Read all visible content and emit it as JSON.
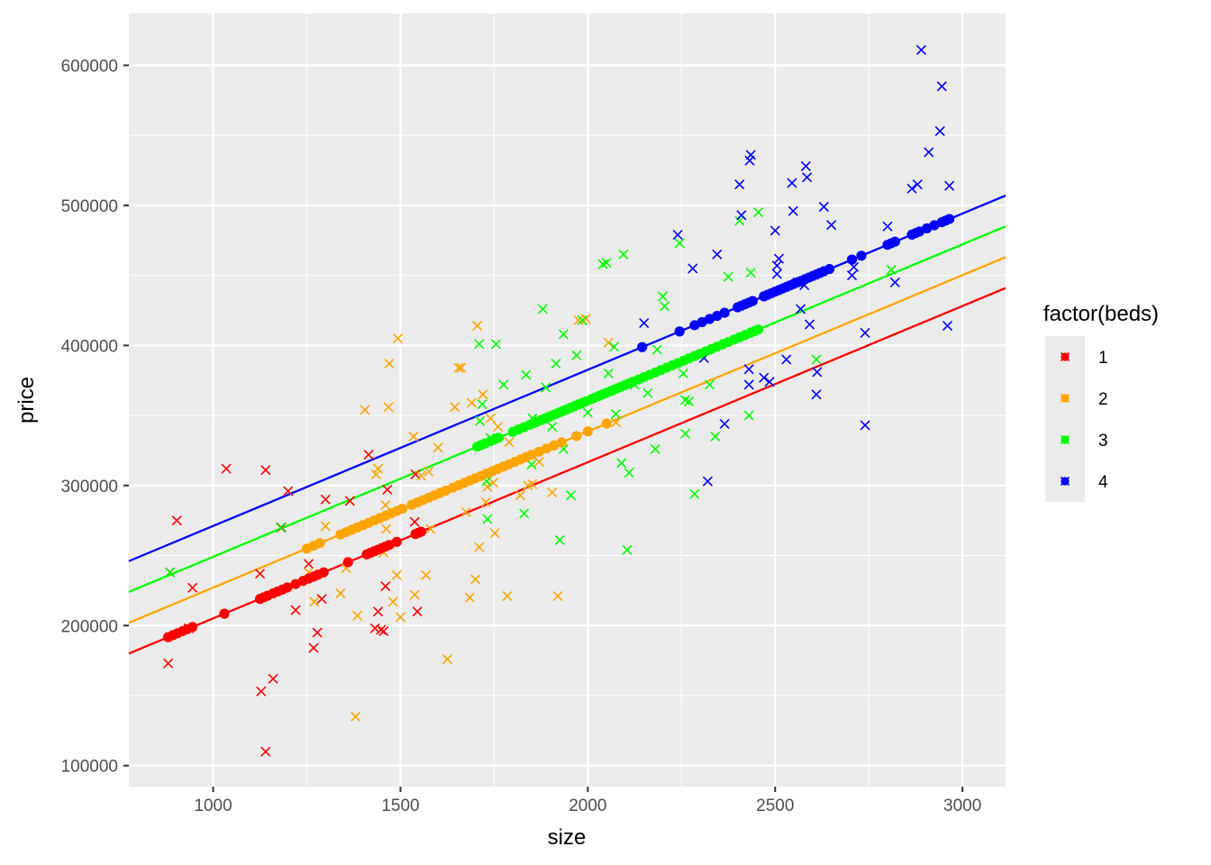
{
  "chart_data": {
    "type": "scatter",
    "xlabel": "size",
    "ylabel": "price",
    "xlim": [
      775,
      3115
    ],
    "ylim": [
      85000,
      637000
    ],
    "xticks": [
      1000,
      1500,
      2000,
      2500,
      3000
    ],
    "yticks": [
      100000,
      200000,
      300000,
      400000,
      500000,
      600000
    ],
    "xtick_labels": [
      "1000",
      "1500",
      "2000",
      "2500",
      "3000"
    ],
    "ytick_labels": [
      "100000",
      "200000",
      "300000",
      "400000",
      "500000",
      "600000"
    ],
    "grid": true,
    "legend": {
      "title": "factor(beds)",
      "position": "right",
      "labels": [
        "1",
        "2",
        "3",
        "4"
      ]
    },
    "series": [
      {
        "name": "1",
        "color": "#ff0000",
        "line": {
          "x": [
            775,
            3115
          ],
          "y": [
            180000,
            441000
          ]
        },
        "fitted_x": [
          880,
          893,
          905,
          918,
          930,
          945,
          1030,
          1125,
          1135,
          1145,
          1160,
          1172,
          1185,
          1198,
          1220,
          1240,
          1255,
          1268,
          1280,
          1295,
          1360,
          1410,
          1420,
          1430,
          1440,
          1450,
          1460,
          1470,
          1490,
          1540,
          1548,
          1555
        ],
        "observed": [
          [
            880,
            173000
          ],
          [
            885,
            238000
          ],
          [
            903,
            275000
          ],
          [
            945,
            227000
          ],
          [
            935,
            198000
          ],
          [
            1035,
            312000
          ],
          [
            1125,
            237000
          ],
          [
            1140,
            311000
          ],
          [
            1128,
            153000
          ],
          [
            1140,
            110000
          ],
          [
            1160,
            162000
          ],
          [
            1182,
            270000
          ],
          [
            1200,
            296000
          ],
          [
            1220,
            211000
          ],
          [
            1255,
            244000
          ],
          [
            1268,
            184000
          ],
          [
            1278,
            195000
          ],
          [
            1290,
            219000
          ],
          [
            1300,
            290000
          ],
          [
            1365,
            289000
          ],
          [
            1415,
            322000
          ],
          [
            1432,
            198000
          ],
          [
            1440,
            210000
          ],
          [
            1448,
            197000
          ],
          [
            1455,
            196000
          ],
          [
            1460,
            228000
          ],
          [
            1465,
            297000
          ],
          [
            1538,
            274000
          ],
          [
            1540,
            308000
          ],
          [
            1545,
            210000
          ]
        ]
      },
      {
        "name": "2",
        "color": "#ffa500",
        "line": {
          "x": [
            775,
            3115
          ],
          "y": [
            202000,
            463000
          ]
        },
        "fitted_x": [
          1250,
          1268,
          1285,
          1340,
          1355,
          1370,
          1385,
          1400,
          1415,
          1430,
          1445,
          1460,
          1475,
          1490,
          1505,
          1530,
          1545,
          1560,
          1575,
          1590,
          1605,
          1620,
          1640,
          1655,
          1670,
          1685,
          1700,
          1715,
          1730,
          1745,
          1760,
          1775,
          1790,
          1805,
          1820,
          1835,
          1850,
          1870,
          1890,
          1910,
          1930,
          1970,
          2000,
          2050
        ],
        "observed": [
          [
            1255,
            238000
          ],
          [
            1270,
            217000
          ],
          [
            1300,
            271000
          ],
          [
            1340,
            223000
          ],
          [
            1355,
            241000
          ],
          [
            1380,
            135000
          ],
          [
            1385,
            207000
          ],
          [
            1405,
            354000
          ],
          [
            1435,
            308000
          ],
          [
            1440,
            312000
          ],
          [
            1455,
            252000
          ],
          [
            1460,
            286000
          ],
          [
            1462,
            269000
          ],
          [
            1468,
            356000
          ],
          [
            1470,
            387000
          ],
          [
            1480,
            217000
          ],
          [
            1490,
            236000
          ],
          [
            1493,
            405000
          ],
          [
            1500,
            206000
          ],
          [
            1535,
            335000
          ],
          [
            1538,
            222000
          ],
          [
            1555,
            307000
          ],
          [
            1568,
            236000
          ],
          [
            1575,
            310000
          ],
          [
            1580,
            269000
          ],
          [
            1600,
            327000
          ],
          [
            1625,
            176000
          ],
          [
            1645,
            356000
          ],
          [
            1655,
            384000
          ],
          [
            1662,
            384000
          ],
          [
            1675,
            281000
          ],
          [
            1685,
            220000
          ],
          [
            1690,
            359000
          ],
          [
            1700,
            233000
          ],
          [
            1705,
            414000
          ],
          [
            1710,
            256000
          ],
          [
            1720,
            365000
          ],
          [
            1728,
            288000
          ],
          [
            1732,
            299000
          ],
          [
            1740,
            348000
          ],
          [
            1748,
            302000
          ],
          [
            1752,
            266000
          ],
          [
            1760,
            342000
          ],
          [
            1785,
            221000
          ],
          [
            1790,
            331000
          ],
          [
            1820,
            293000
          ],
          [
            1840,
            300000
          ],
          [
            1852,
            301000
          ],
          [
            1870,
            317000
          ],
          [
            1905,
            295000
          ],
          [
            1920,
            221000
          ],
          [
            1975,
            418000
          ],
          [
            1995,
            419000
          ],
          [
            2055,
            402000
          ],
          [
            2075,
            345000
          ]
        ]
      },
      {
        "name": "3",
        "color": "#00ff00",
        "line": {
          "x": [
            775,
            3115
          ],
          "y": [
            224000,
            485000
          ]
        },
        "fitted_x": [
          1705,
          1715,
          1725,
          1740,
          1752,
          1762,
          1800,
          1815,
          1830,
          1845,
          1855,
          1865,
          1875,
          1885,
          1895,
          1905,
          1915,
          1925,
          1935,
          1945,
          1955,
          1965,
          1975,
          1985,
          1995,
          2010,
          2020,
          2030,
          2040,
          2050,
          2060,
          2070,
          2080,
          2090,
          2100,
          2110,
          2120,
          2135,
          2150,
          2165,
          2180,
          2195,
          2210,
          2225,
          2240,
          2255,
          2270,
          2285,
          2300,
          2315,
          2330,
          2345,
          2360,
          2375,
          2390,
          2405,
          2420,
          2435,
          2445,
          2455
        ],
        "observed": [
          [
            885,
            238000
          ],
          [
            1180,
            270000
          ],
          [
            1710,
            401000
          ],
          [
            1712,
            346000
          ],
          [
            1718,
            358000
          ],
          [
            1730,
            303000
          ],
          [
            1732,
            276000
          ],
          [
            1740,
            334000
          ],
          [
            1755,
            401000
          ],
          [
            1775,
            372000
          ],
          [
            1830,
            280000
          ],
          [
            1835,
            379000
          ],
          [
            1850,
            315000
          ],
          [
            1852,
            348000
          ],
          [
            1880,
            426000
          ],
          [
            1888,
            370000
          ],
          [
            1905,
            342000
          ],
          [
            1915,
            387000
          ],
          [
            1925,
            261000
          ],
          [
            1935,
            326000
          ],
          [
            1935,
            408000
          ],
          [
            1955,
            293000
          ],
          [
            1970,
            393000
          ],
          [
            1985,
            418000
          ],
          [
            2000,
            352000
          ],
          [
            2040,
            458000
          ],
          [
            2050,
            459000
          ],
          [
            2055,
            380000
          ],
          [
            2070,
            399000
          ],
          [
            2075,
            351000
          ],
          [
            2090,
            316000
          ],
          [
            2095,
            465000
          ],
          [
            2105,
            254000
          ],
          [
            2110,
            309000
          ],
          [
            2125,
            372000
          ],
          [
            2160,
            366000
          ],
          [
            2180,
            326000
          ],
          [
            2185,
            397000
          ],
          [
            2200,
            435000
          ],
          [
            2205,
            428000
          ],
          [
            2245,
            473000
          ],
          [
            2255,
            380000
          ],
          [
            2260,
            337000
          ],
          [
            2260,
            361000
          ],
          [
            2270,
            360000
          ],
          [
            2285,
            294000
          ],
          [
            2325,
            372000
          ],
          [
            2340,
            335000
          ],
          [
            2375,
            449000
          ],
          [
            2405,
            489000
          ],
          [
            2430,
            350000
          ],
          [
            2435,
            452000
          ],
          [
            2455,
            495000
          ],
          [
            2610,
            390000
          ],
          [
            2810,
            454000
          ]
        ]
      },
      {
        "name": "4",
        "color": "#0000ff",
        "line": {
          "x": [
            775,
            3115
          ],
          "y": [
            246000,
            507000
          ]
        },
        "fitted_x": [
          2145,
          2245,
          2285,
          2305,
          2325,
          2345,
          2365,
          2400,
          2410,
          2420,
          2430,
          2440,
          2470,
          2480,
          2490,
          2500,
          2510,
          2520,
          2530,
          2540,
          2550,
          2560,
          2570,
          2580,
          2590,
          2600,
          2610,
          2620,
          2630,
          2645,
          2705,
          2730,
          2800,
          2810,
          2820,
          2865,
          2875,
          2885,
          2905,
          2925,
          2945,
          2955,
          2965
        ],
        "observed": [
          [
            2150,
            416000
          ],
          [
            2240,
            479000
          ],
          [
            2280,
            455000
          ],
          [
            2310,
            391000
          ],
          [
            2320,
            303000
          ],
          [
            2345,
            465000
          ],
          [
            2365,
            344000
          ],
          [
            2405,
            515000
          ],
          [
            2410,
            493000
          ],
          [
            2430,
            383000
          ],
          [
            2430,
            372000
          ],
          [
            2432,
            532000
          ],
          [
            2435,
            536000
          ],
          [
            2470,
            377000
          ],
          [
            2485,
            374000
          ],
          [
            2500,
            482000
          ],
          [
            2505,
            457000
          ],
          [
            2505,
            451000
          ],
          [
            2510,
            462000
          ],
          [
            2530,
            390000
          ],
          [
            2545,
            516000
          ],
          [
            2548,
            496000
          ],
          [
            2560,
            445000
          ],
          [
            2568,
            426000
          ],
          [
            2578,
            443000
          ],
          [
            2582,
            528000
          ],
          [
            2585,
            520000
          ],
          [
            2592,
            415000
          ],
          [
            2610,
            365000
          ],
          [
            2612,
            381000
          ],
          [
            2630,
            499000
          ],
          [
            2650,
            486000
          ],
          [
            2705,
            450000
          ],
          [
            2710,
            456000
          ],
          [
            2740,
            343000
          ],
          [
            2740,
            409000
          ],
          [
            2800,
            485000
          ],
          [
            2820,
            445000
          ],
          [
            2865,
            512000
          ],
          [
            2880,
            515000
          ],
          [
            2890,
            611000
          ],
          [
            2910,
            538000
          ],
          [
            2940,
            553000
          ],
          [
            2945,
            585000
          ],
          [
            2960,
            414000
          ],
          [
            2965,
            514000
          ]
        ]
      }
    ]
  }
}
